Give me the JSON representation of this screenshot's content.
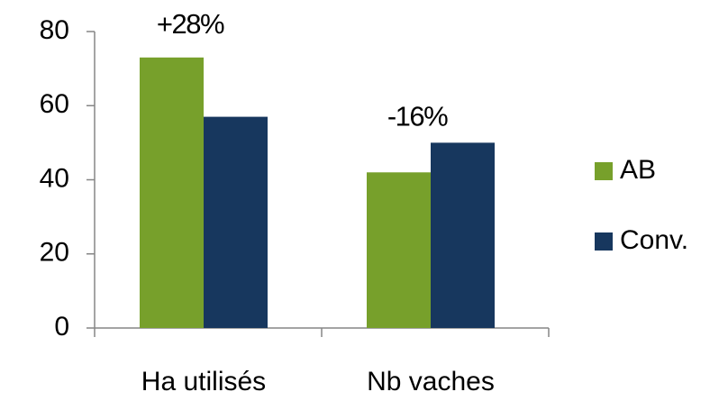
{
  "chart_data": {
    "type": "bar",
    "categories": [
      "Ha utilisés",
      "Nb vaches"
    ],
    "series": [
      {
        "name": "AB",
        "color": "#77a02b",
        "values": [
          73,
          42
        ]
      },
      {
        "name": "Conv.",
        "color": "#17375e",
        "values": [
          57,
          50
        ]
      }
    ],
    "annotations": [
      "+28%",
      "-16%"
    ],
    "ylim": [
      0,
      80
    ],
    "yticks": [
      0,
      20,
      40,
      60,
      80
    ],
    "grid": false,
    "legend": "right"
  }
}
